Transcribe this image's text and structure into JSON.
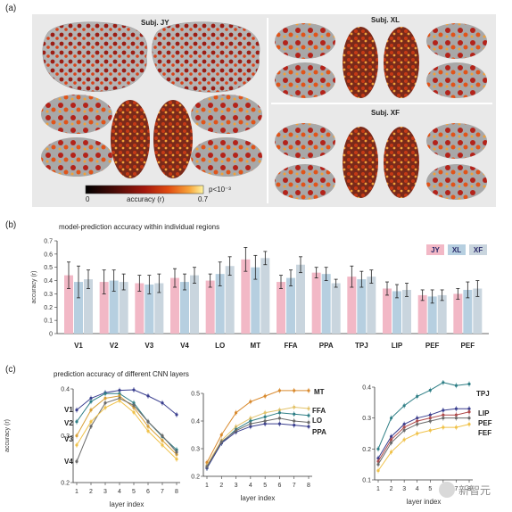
{
  "panel_a": {
    "label": "(a)",
    "subjects": [
      "Subj. JY",
      "Subj. XL",
      "Subj. XF"
    ],
    "colorbar": {
      "min": "0",
      "max": "0.7",
      "title": "accuracy (r)",
      "threshold": "p<10⁻³",
      "colors": [
        "#000000",
        "#4a0b07",
        "#a3180d",
        "#e04a10",
        "#f7a43a",
        "#fff5a0"
      ]
    }
  },
  "panel_b": {
    "label": "(b)",
    "title": "model-prediction accuracy within individual regions"
  },
  "panel_c": {
    "label": "(c)",
    "title": "prediction accuracy of different CNN layers"
  },
  "watermark": "新智元",
  "chart_data": [
    {
      "type": "bar",
      "title": "model-prediction accuracy within individual regions",
      "ylabel": "accuracy (r)",
      "ylim": [
        0,
        0.7
      ],
      "yticks": [
        "0",
        "0.1",
        "0.2",
        "0.3",
        "0.4",
        "0.5",
        "0.6",
        "0.7"
      ],
      "legend": "top-right",
      "categories": [
        "V1",
        "V2",
        "V3",
        "V4",
        "LO",
        "MT",
        "FFA",
        "PPA",
        "TPJ",
        "LIP",
        "PEF",
        "PEF"
      ],
      "series": [
        {
          "name": "JY",
          "color": "#f2b8c6",
          "values": [
            0.44,
            0.39,
            0.38,
            0.42,
            0.4,
            0.56,
            0.39,
            0.46,
            0.43,
            0.34,
            0.29,
            0.3
          ],
          "errors": [
            0.1,
            0.09,
            0.06,
            0.07,
            0.05,
            0.09,
            0.05,
            0.04,
            0.08,
            0.05,
            0.04,
            0.04
          ]
        },
        {
          "name": "XL",
          "color": "#b6cfe0",
          "values": [
            0.39,
            0.4,
            0.37,
            0.39,
            0.45,
            0.5,
            0.42,
            0.45,
            0.41,
            0.32,
            0.28,
            0.33
          ],
          "errors": [
            0.12,
            0.08,
            0.07,
            0.06,
            0.09,
            0.09,
            0.06,
            0.05,
            0.06,
            0.05,
            0.05,
            0.06
          ]
        },
        {
          "name": "XF",
          "color": "#c9d5de",
          "values": [
            0.41,
            0.39,
            0.38,
            0.44,
            0.51,
            0.57,
            0.52,
            0.38,
            0.43,
            0.33,
            0.29,
            0.34
          ],
          "errors": [
            0.07,
            0.06,
            0.07,
            0.06,
            0.07,
            0.05,
            0.06,
            0.03,
            0.05,
            0.05,
            0.04,
            0.06
          ]
        }
      ]
    },
    {
      "type": "line",
      "xlabel": "layer index",
      "ylabel": "accuracy (r)",
      "x": [
        1,
        2,
        3,
        4,
        5,
        6,
        7,
        8
      ],
      "ylim": [
        0.2,
        0.4
      ],
      "yticks": [
        "0.2",
        "0.3",
        "0.4"
      ],
      "series": [
        {
          "name": "V1",
          "color": "#3a3f8f",
          "values": [
            0.355,
            0.38,
            0.392,
            0.397,
            0.398,
            0.385,
            0.37,
            0.345
          ]
        },
        {
          "name": "V2",
          "color": "#2f7f86",
          "values": [
            0.33,
            0.373,
            0.39,
            0.39,
            0.37,
            0.33,
            0.298,
            0.27
          ]
        },
        {
          "name": "V3",
          "color": "#d9a23a",
          "values": [
            0.3,
            0.355,
            0.38,
            0.385,
            0.36,
            0.32,
            0.29,
            0.26
          ]
        },
        {
          "name": "V4",
          "color": "#6b6b6b",
          "values": [
            0.245,
            0.32,
            0.37,
            0.38,
            0.365,
            0.33,
            0.3,
            0.265
          ]
        },
        {
          "name": "",
          "color": "#f0c24a",
          "values": [
            0.28,
            0.33,
            0.36,
            0.375,
            0.35,
            0.31,
            0.28,
            0.25
          ]
        }
      ]
    },
    {
      "type": "line",
      "xlabel": "layer index",
      "x": [
        1,
        2,
        3,
        4,
        5,
        6,
        7,
        8
      ],
      "ylim": [
        0.2,
        0.5
      ],
      "yticks": [
        "0.2",
        "0.3",
        "0.4",
        "0.5"
      ],
      "series": [
        {
          "name": "MT",
          "color": "#d98a2e",
          "values": [
            0.25,
            0.35,
            0.43,
            0.47,
            0.49,
            0.51,
            0.51,
            0.51
          ]
        },
        {
          "name": "FFA",
          "color": "#e3c36b",
          "values": [
            0.24,
            0.33,
            0.38,
            0.41,
            0.43,
            0.44,
            0.45,
            0.445
          ]
        },
        {
          "name": "LO",
          "color": "#2f7f86",
          "values": [
            0.23,
            0.32,
            0.37,
            0.4,
            0.415,
            0.43,
            0.425,
            0.42
          ]
        },
        {
          "name": "PPA",
          "color": "#3a3f8f",
          "values": [
            0.23,
            0.32,
            0.36,
            0.38,
            0.39,
            0.39,
            0.385,
            0.38
          ]
        },
        {
          "name": "",
          "color": "#6b6b6b",
          "values": [
            0.235,
            0.325,
            0.365,
            0.39,
            0.4,
            0.41,
            0.4,
            0.395
          ]
        }
      ]
    },
    {
      "type": "line",
      "xlabel": "layer index",
      "x": [
        1,
        2,
        3,
        4,
        5,
        6,
        7,
        8
      ],
      "ylim": [
        0.1,
        0.4
      ],
      "yticks": [
        "0.1",
        "0.2",
        "0.3",
        "0.4"
      ],
      "series": [
        {
          "name": "TPJ",
          "color": "#2f7f86",
          "values": [
            0.2,
            0.3,
            0.34,
            0.37,
            0.39,
            0.415,
            0.405,
            0.41
          ]
        },
        {
          "name": "LIP",
          "color": "#3a3f8f",
          "values": [
            0.17,
            0.24,
            0.28,
            0.3,
            0.31,
            0.325,
            0.33,
            0.33
          ]
        },
        {
          "name": "PEF",
          "color": "#b04a4a",
          "values": [
            0.16,
            0.23,
            0.27,
            0.29,
            0.3,
            0.31,
            0.31,
            0.32
          ]
        },
        {
          "name": "FEF",
          "color": "#f0c24a",
          "values": [
            0.13,
            0.19,
            0.23,
            0.25,
            0.26,
            0.27,
            0.27,
            0.28
          ]
        },
        {
          "name": "",
          "color": "#6b6b6b",
          "values": [
            0.15,
            0.22,
            0.26,
            0.28,
            0.29,
            0.3,
            0.3,
            0.3
          ]
        }
      ]
    }
  ]
}
